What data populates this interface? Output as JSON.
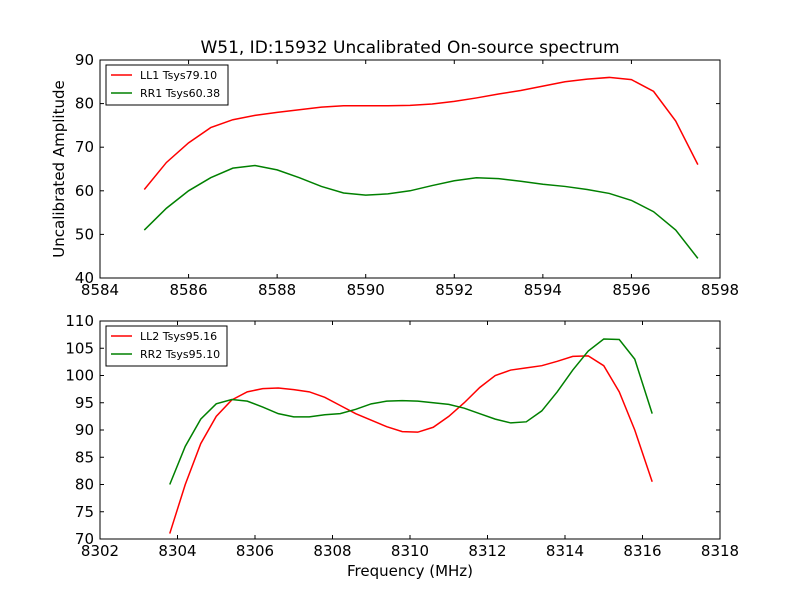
{
  "figure": {
    "title": "W51, ID:15932 Uncalibrated On-source spectrum"
  },
  "chart_data": [
    {
      "type": "line",
      "title": "W51, ID:15932 Uncalibrated On-source spectrum",
      "xlabel": "",
      "ylabel": "Uncalibrated Amplitude",
      "xlim": [
        8584,
        8598
      ],
      "ylim": [
        40,
        90
      ],
      "xticks": [
        8584,
        8586,
        8588,
        8590,
        8592,
        8594,
        8596,
        8598
      ],
      "yticks": [
        40,
        50,
        60,
        70,
        80,
        90
      ],
      "grid": false,
      "legend_position": "upper-left",
      "series": [
        {
          "name": "LL1 Tsys79.10",
          "color": "#ff0000",
          "x": [
            8585.0,
            8585.5,
            8586.0,
            8586.5,
            8587.0,
            8587.5,
            8588.0,
            8588.5,
            8589.0,
            8589.5,
            8590.0,
            8590.5,
            8591.0,
            8591.5,
            8592.0,
            8592.5,
            8593.0,
            8593.5,
            8594.0,
            8594.5,
            8595.0,
            8595.5,
            8596.0,
            8596.5,
            8597.0,
            8597.5
          ],
          "y": [
            60.3,
            66.5,
            71.0,
            74.5,
            76.3,
            77.3,
            78.0,
            78.6,
            79.2,
            79.5,
            79.5,
            79.5,
            79.6,
            79.9,
            80.5,
            81.3,
            82.2,
            83.0,
            84.0,
            85.0,
            85.6,
            86.0,
            85.5,
            82.8,
            76.0,
            66.0
          ]
        },
        {
          "name": "RR1 Tsys60.38",
          "color": "#008000",
          "x": [
            8585.0,
            8585.5,
            8586.0,
            8586.5,
            8587.0,
            8587.5,
            8588.0,
            8588.5,
            8589.0,
            8589.5,
            8590.0,
            8590.5,
            8591.0,
            8591.5,
            8592.0,
            8592.5,
            8593.0,
            8593.5,
            8594.0,
            8594.5,
            8595.0,
            8595.5,
            8596.0,
            8596.5,
            8597.0,
            8597.5
          ],
          "y": [
            51.0,
            56.0,
            60.0,
            63.0,
            65.2,
            65.8,
            64.8,
            63.0,
            61.0,
            59.5,
            59.0,
            59.3,
            60.0,
            61.2,
            62.3,
            63.0,
            62.8,
            62.2,
            61.5,
            61.0,
            60.3,
            59.4,
            57.8,
            55.2,
            51.0,
            44.5
          ]
        }
      ]
    },
    {
      "type": "line",
      "title": "",
      "xlabel": "Frequency (MHz)",
      "ylabel": "",
      "xlim": [
        8302,
        8318
      ],
      "ylim": [
        70,
        110
      ],
      "xticks": [
        8302,
        8304,
        8306,
        8308,
        8310,
        8312,
        8314,
        8316,
        8318
      ],
      "yticks": [
        70,
        75,
        80,
        85,
        90,
        95,
        100,
        105,
        110
      ],
      "grid": false,
      "legend_position": "upper-left",
      "series": [
        {
          "name": "LL2 Tsys95.16",
          "color": "#ff0000",
          "x": [
            8303.8,
            8304.2,
            8304.6,
            8305.0,
            8305.4,
            8305.8,
            8306.2,
            8306.6,
            8307.0,
            8307.4,
            8307.8,
            8308.2,
            8308.6,
            8309.0,
            8309.4,
            8309.8,
            8310.2,
            8310.6,
            8311.0,
            8311.4,
            8311.8,
            8312.2,
            8312.6,
            8313.0,
            8313.4,
            8313.8,
            8314.2,
            8314.6,
            8315.0,
            8315.4,
            8315.8,
            8316.25
          ],
          "y": [
            71.0,
            80.0,
            87.5,
            92.5,
            95.5,
            97.0,
            97.6,
            97.7,
            97.4,
            97.0,
            96.0,
            94.5,
            93.0,
            91.8,
            90.6,
            89.7,
            89.6,
            90.5,
            92.5,
            95.0,
            97.8,
            100.0,
            101.0,
            101.4,
            101.8,
            102.6,
            103.5,
            103.6,
            101.8,
            97.0,
            90.0,
            80.5
          ]
        },
        {
          "name": "RR2 Tsys95.10",
          "color": "#008000",
          "x": [
            8303.8,
            8304.2,
            8304.6,
            8305.0,
            8305.4,
            8305.8,
            8306.2,
            8306.6,
            8307.0,
            8307.4,
            8307.8,
            8308.2,
            8308.6,
            8309.0,
            8309.4,
            8309.8,
            8310.2,
            8310.6,
            8311.0,
            8311.4,
            8311.8,
            8312.2,
            8312.6,
            8313.0,
            8313.4,
            8313.8,
            8314.2,
            8314.6,
            8315.0,
            8315.4,
            8315.8,
            8316.25
          ],
          "y": [
            80.0,
            87.0,
            92.0,
            94.8,
            95.6,
            95.3,
            94.2,
            93.0,
            92.4,
            92.4,
            92.8,
            93.0,
            93.8,
            94.8,
            95.3,
            95.4,
            95.3,
            95.0,
            94.7,
            94.0,
            93.0,
            92.0,
            91.3,
            91.5,
            93.5,
            97.0,
            101.0,
            104.5,
            106.7,
            106.6,
            103.0,
            93.0
          ]
        }
      ]
    }
  ]
}
